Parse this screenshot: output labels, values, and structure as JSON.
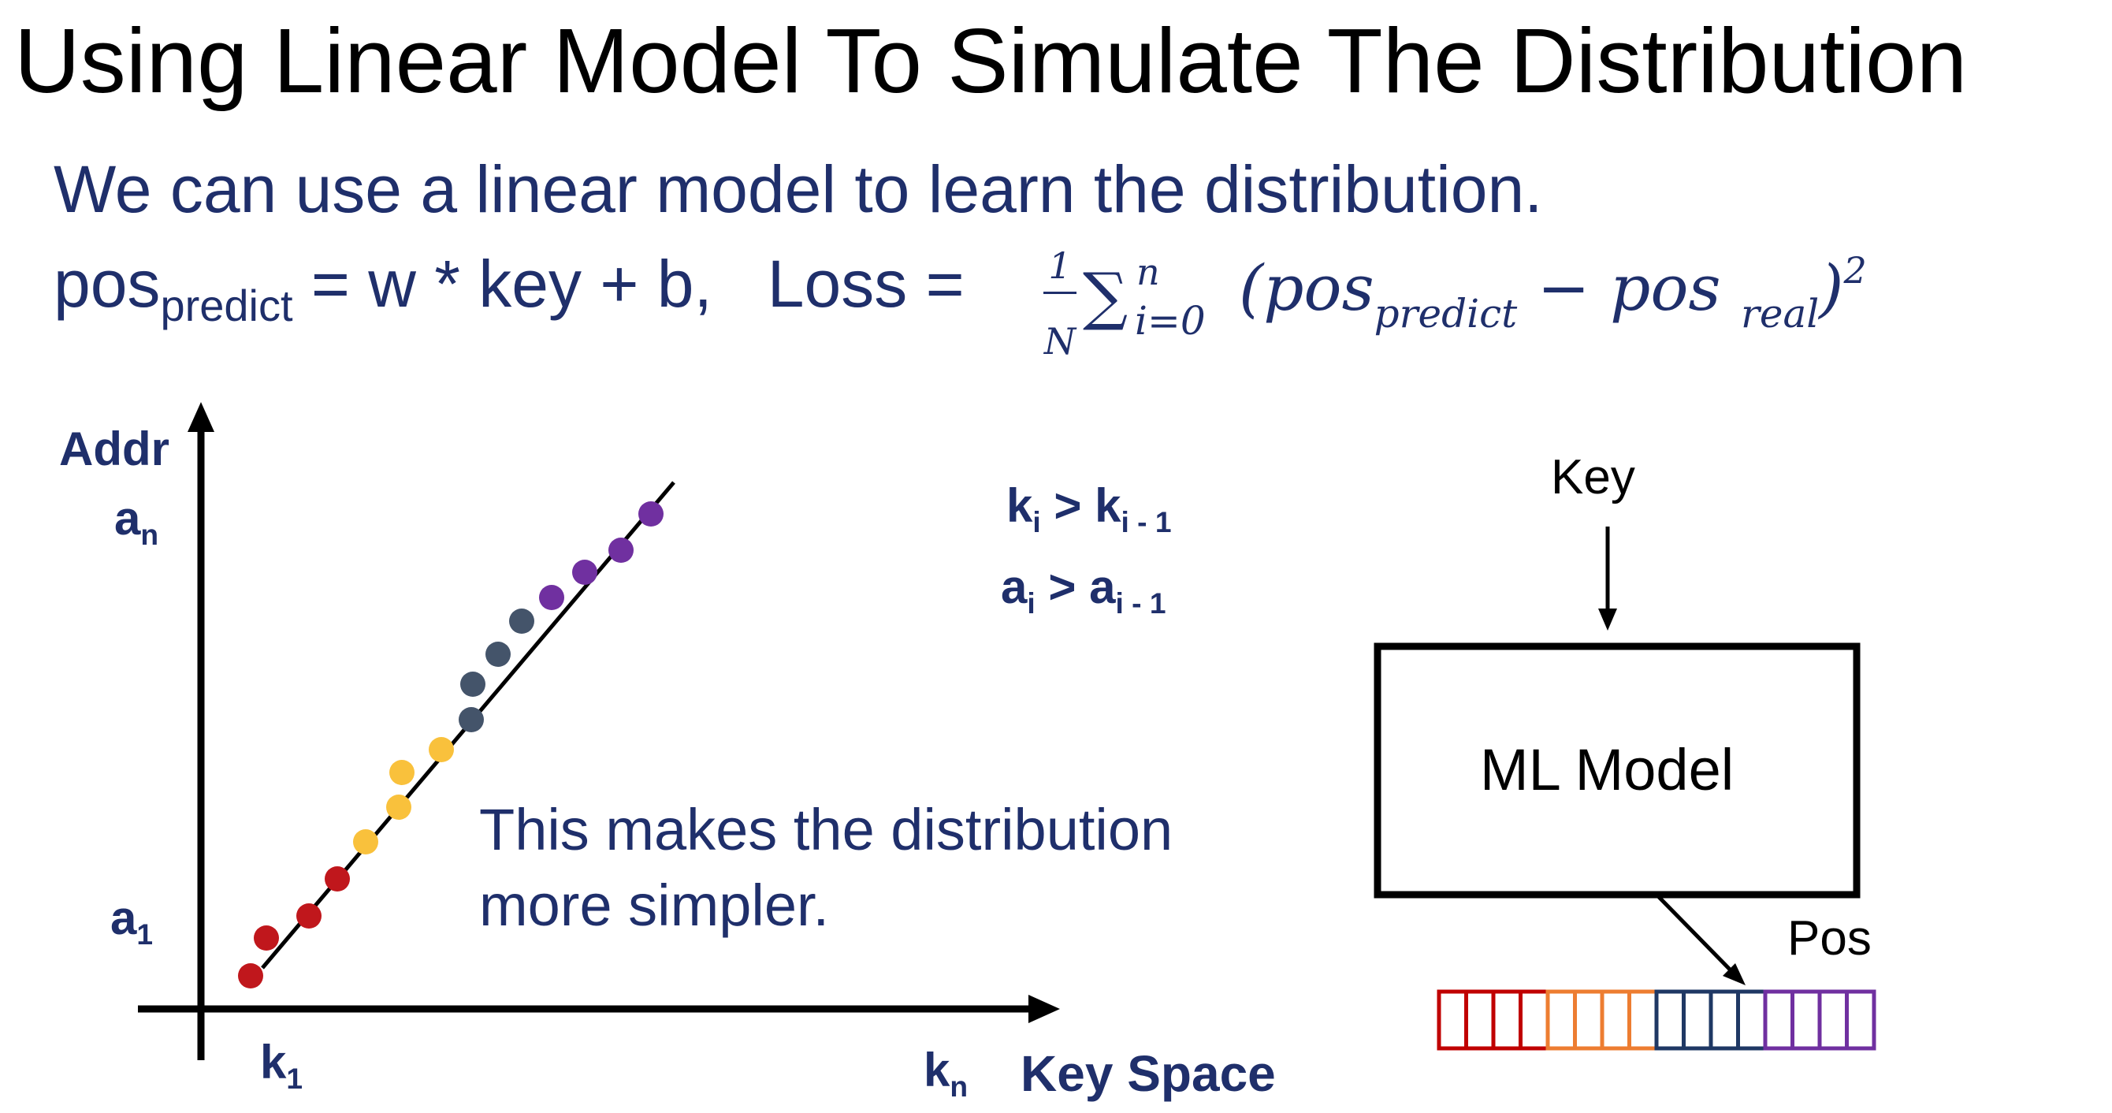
{
  "title": "Using Linear Model To Simulate The Distribution",
  "line1": "We can use a linear model to learn the distribution.",
  "formula": {
    "pos": "pos",
    "predict_sub": "predict",
    "rest": " = w * key + b,   Loss = ",
    "frac_num": "1",
    "frac_den": "N",
    "sigma": "∑",
    "sigma_upper": "n",
    "sigma_lower": "i=0",
    "open": "(pos",
    "s_predict": "predict",
    "minus": " − pos ",
    "s_real": "real",
    "close": ")",
    "power": "2"
  },
  "plot": {
    "y_axis_label": "Addr",
    "an": "a",
    "an_sub": "n",
    "a1": "a",
    "a1_sub": "1",
    "k1": "k",
    "k1_sub": "1",
    "kn": "k",
    "kn_sub": "n",
    "x_axis_label": "Key Space",
    "cond1": {
      "a": "k",
      "a_sub": "i",
      "op": " > ",
      "b": "k",
      "b_sub": "i - 1"
    },
    "cond2": {
      "a": "a",
      "a_sub": "i",
      "op": " > ",
      "b": "a",
      "b_sub": "i - 1"
    },
    "note_line1": "This makes the distribution",
    "note_line2": "more simpler.",
    "colors": {
      "red": "#c0171c",
      "yellow": "#f9c13c",
      "gray": "#44546a",
      "purple": "#7030a0"
    }
  },
  "diagram": {
    "key_label": "Key",
    "model_label": "ML Model",
    "pos_label": "Pos",
    "array_colors": [
      "#c00000",
      "#ed7d31",
      "#1f3864",
      "#7030a0"
    ]
  }
}
